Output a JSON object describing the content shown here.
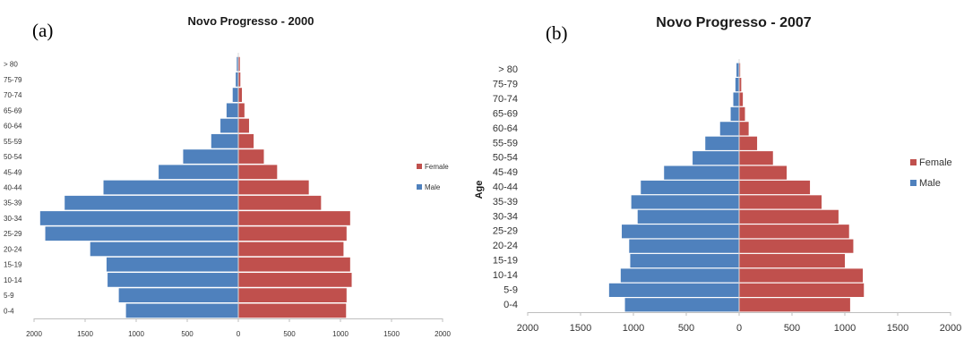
{
  "chart_data": [
    {
      "panel_label": "(a)",
      "type": "bar",
      "orientation": "horizontal",
      "layout": "population-pyramid",
      "title": "Novo Progresso - 2000",
      "ylabel": "",
      "categories": [
        "0-4",
        "5-9",
        "10-14",
        "15-19",
        "20-24",
        "25-29",
        "30-34",
        "35-39",
        "40-44",
        "45-49",
        "50-54",
        "55-59",
        "60-64",
        "65-69",
        "70-74",
        "75-79",
        "> 80"
      ],
      "series": [
        {
          "name": "Female",
          "color": "#c0504d",
          "values": [
            1055,
            1060,
            1110,
            1095,
            1030,
            1060,
            1095,
            810,
            690,
            380,
            250,
            150,
            105,
            60,
            35,
            20,
            15
          ]
        },
        {
          "name": "Male",
          "color": "#4f81bd",
          "values": [
            1100,
            1170,
            1280,
            1290,
            1450,
            1890,
            1940,
            1700,
            1320,
            780,
            540,
            265,
            175,
            115,
            55,
            25,
            15
          ]
        }
      ],
      "xticks": [
        "2000",
        "1500",
        "1000",
        "500",
        "0",
        "500",
        "1000",
        "1500",
        "2000"
      ],
      "xlim": [
        -2000,
        2000
      ],
      "legend": "right",
      "grid": false
    },
    {
      "panel_label": "(b)",
      "type": "bar",
      "orientation": "horizontal",
      "layout": "population-pyramid",
      "title": "Novo Progresso - 2007",
      "ylabel": "Age",
      "categories": [
        "0-4",
        "5-9",
        "10-14",
        "15-19",
        "20-24",
        "25-29",
        "30-34",
        "35-39",
        "40-44",
        "45-49",
        "50-54",
        "55-59",
        "60-64",
        "65-69",
        "70-74",
        "75-79",
        "> 80"
      ],
      "series": [
        {
          "name": "Female",
          "color": "#c0504d",
          "values": [
            1050,
            1180,
            1170,
            1000,
            1080,
            1040,
            940,
            780,
            670,
            450,
            320,
            170,
            90,
            55,
            35,
            20,
            10
          ]
        },
        {
          "name": "Male",
          "color": "#4f81bd",
          "values": [
            1080,
            1230,
            1120,
            1030,
            1040,
            1110,
            960,
            1020,
            930,
            710,
            440,
            320,
            180,
            80,
            55,
            35,
            25
          ]
        }
      ],
      "xticks": [
        "2000",
        "1500",
        "1000",
        "500",
        "0",
        "500",
        "1000",
        "1500",
        "2000"
      ],
      "xlim": [
        -2000,
        2000
      ],
      "legend": "right",
      "grid": false
    }
  ]
}
